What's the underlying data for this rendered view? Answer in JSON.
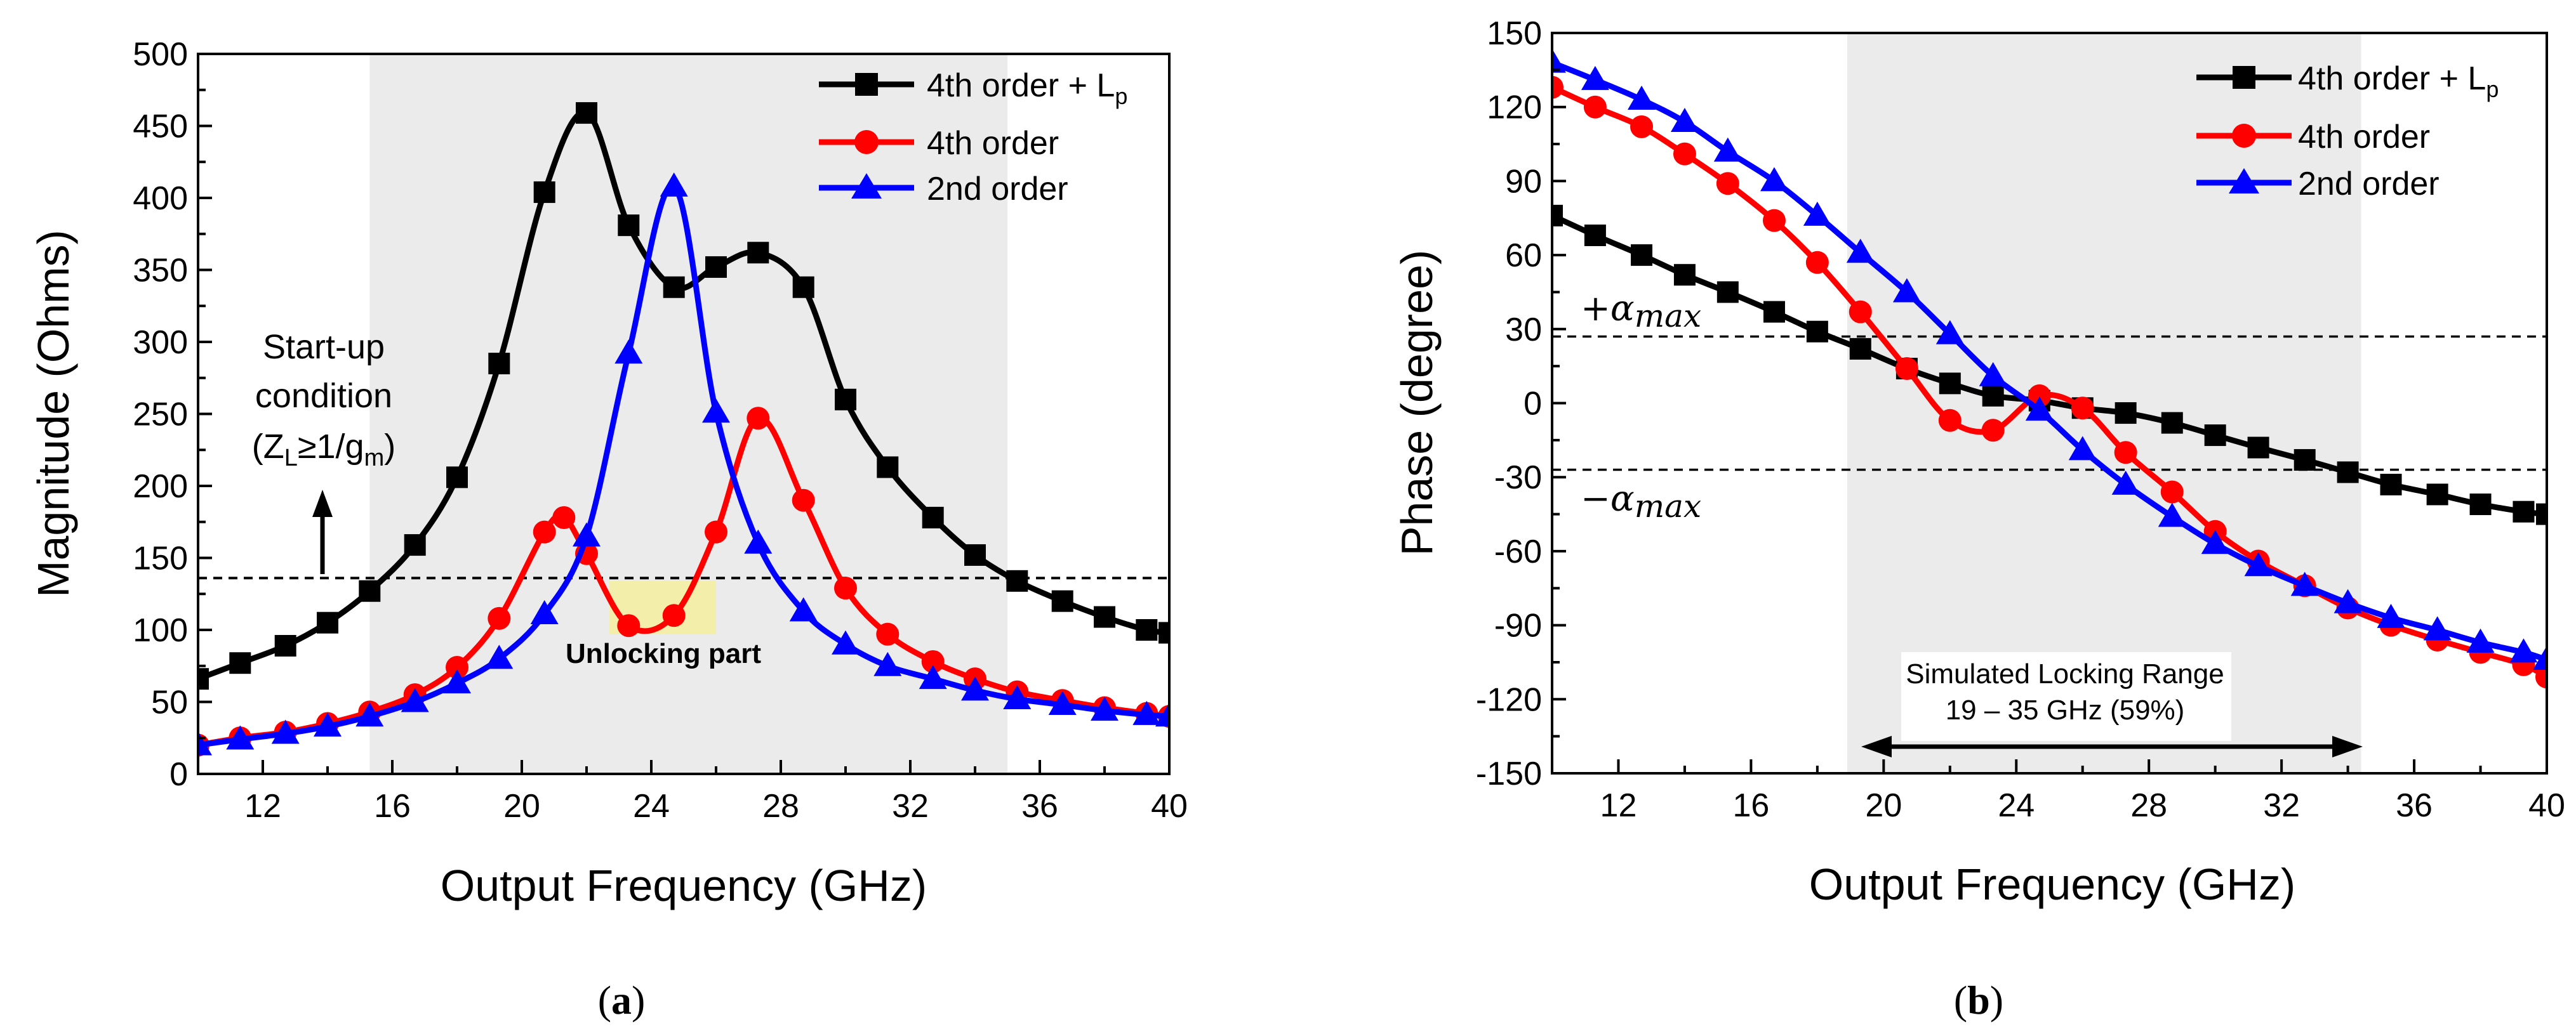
{
  "colors": {
    "black_series": "#000000",
    "red_series": "#ff0000",
    "blue_series": "#0000ff",
    "shade": "#ebebeb",
    "unlock_highlight": "#f5f0a0"
  },
  "chart_data": [
    {
      "type": "line",
      "panel_label": "a",
      "xlabel": "Output Frequency (GHz)",
      "ylabel": "Magnitude (Ohms)",
      "xlim": [
        10,
        40
      ],
      "ylim": [
        0,
        500
      ],
      "xticks": [
        "12",
        "16",
        "20",
        "24",
        "28",
        "32",
        "36",
        "40"
      ],
      "yticks": [
        "0",
        "50",
        "100",
        "150",
        "200",
        "250",
        "300",
        "350",
        "400",
        "450",
        "500"
      ],
      "shaded_region": [
        15.3,
        35
      ],
      "threshold_line": 136,
      "annotation": {
        "line1": "Start-up",
        "line2": "condition",
        "line3_prefix": "(Z",
        "line3_sub1": "L",
        "line3_mid": "≥1/g",
        "line3_sub2": "m",
        "line3_suffix": ")"
      },
      "unlocking_label": "Unlocking part",
      "series": [
        {
          "name": "4th order + Lp",
          "legend_main": "4th order + L",
          "legend_sub": "p",
          "color": "#000000",
          "marker": "square",
          "x": [
            10,
            11.3,
            12.7,
            14.0,
            15.3,
            16.7,
            18.0,
            19.3,
            20.7,
            22.0,
            23.3,
            24.7,
            26.0,
            27.3,
            28.7,
            30.0,
            31.3,
            32.7,
            34.0,
            35.3,
            36.7,
            38.0,
            39.3,
            40
          ],
          "y": [
            66,
            77,
            89,
            105,
            127,
            159,
            206,
            285,
            404,
            459,
            381,
            338,
            352,
            362,
            338,
            260,
            213,
            178,
            152,
            134,
            120,
            109,
            100,
            98
          ]
        },
        {
          "name": "4th order",
          "legend_main": "4th order",
          "legend_sub": "",
          "color": "#ff0000",
          "marker": "circle",
          "x": [
            10,
            11.3,
            12.7,
            14.0,
            15.3,
            16.7,
            18.0,
            19.3,
            20.7,
            21.3,
            22.0,
            23.3,
            24.7,
            26.0,
            27.3,
            28.7,
            30.0,
            31.3,
            32.7,
            34.0,
            35.3,
            36.7,
            38.0,
            39.3,
            40
          ],
          "y": [
            20,
            25,
            29,
            35,
            43,
            55,
            74,
            108,
            168,
            178,
            153,
            103,
            110,
            168,
            247,
            190,
            129,
            97,
            78,
            66,
            57,
            51,
            46,
            42,
            40
          ]
        },
        {
          "name": "2nd order",
          "legend_main": "2nd order",
          "legend_sub": "",
          "color": "#0000ff",
          "marker": "triangle",
          "x": [
            10,
            11.3,
            12.7,
            14.0,
            15.3,
            16.7,
            18.0,
            19.3,
            20.7,
            22.0,
            23.3,
            24.7,
            26.0,
            27.3,
            28.7,
            30.0,
            31.3,
            32.7,
            34.0,
            35.3,
            36.7,
            38.0,
            39.3,
            40
          ],
          "y": [
            20,
            24,
            28,
            33,
            40,
            50,
            63,
            80,
            111,
            165,
            292,
            408,
            251,
            160,
            113,
            90,
            75,
            66,
            58,
            52,
            48,
            44,
            41,
            40
          ]
        }
      ]
    },
    {
      "type": "line",
      "panel_label": "b",
      "xlabel": "Output Frequency (GHz)",
      "ylabel": "Phase (degree)",
      "xlim": [
        10,
        40
      ],
      "ylim": [
        -150,
        150
      ],
      "xticks": [
        "12",
        "16",
        "20",
        "24",
        "28",
        "32",
        "36",
        "40"
      ],
      "yticks": [
        "-150",
        "-120",
        "-90",
        "-60",
        "-30",
        "0",
        "30",
        "60",
        "90",
        "120",
        "150"
      ],
      "shaded_region": [
        18.9,
        34.4
      ],
      "alpha_lines": [
        27,
        -27
      ],
      "alpha_plus": {
        "sign": "+",
        "symbol": "α",
        "sub": "max"
      },
      "alpha_minus": {
        "sign": "−",
        "symbol": "α",
        "sub": "max"
      },
      "locking_range": {
        "line1": "Simulated Locking Range",
        "line2": "19 – 35 GHz (59%)",
        "range": [
          19,
          35
        ]
      },
      "series": [
        {
          "name": "4th order + Lp",
          "legend_main": "4th order + L",
          "legend_sub": "p",
          "color": "#000000",
          "marker": "square",
          "x": [
            10,
            11.3,
            12.7,
            14.0,
            15.3,
            16.7,
            18.0,
            19.3,
            20.7,
            22.0,
            23.3,
            24.7,
            26.0,
            27.3,
            28.7,
            30.0,
            31.3,
            32.7,
            34.0,
            35.3,
            36.7,
            38.0,
            39.3,
            40
          ],
          "y": [
            76,
            68,
            60,
            52,
            45,
            37,
            29,
            22,
            14,
            8,
            3,
            1,
            -2,
            -4,
            -8,
            -13,
            -18,
            -23,
            -28,
            -33,
            -37,
            -41,
            -44,
            -45
          ]
        },
        {
          "name": "4th order",
          "legend_main": "4th order",
          "legend_sub": "",
          "color": "#ff0000",
          "marker": "circle",
          "x": [
            10,
            11.3,
            12.7,
            14.0,
            15.3,
            16.7,
            18.0,
            19.3,
            20.7,
            22.0,
            23.3,
            24.7,
            26.0,
            27.3,
            28.7,
            30.0,
            31.3,
            32.7,
            34.0,
            35.3,
            36.7,
            38.0,
            39.3,
            40
          ],
          "y": [
            128,
            120,
            112,
            101,
            89,
            74,
            57,
            37,
            14,
            -7,
            -11,
            3,
            -2,
            -20,
            -36,
            -52,
            -64,
            -74,
            -83,
            -90,
            -96,
            -101,
            -106,
            -111
          ]
        },
        {
          "name": "2nd order",
          "legend_main": "2nd order",
          "legend_sub": "",
          "color": "#0000ff",
          "marker": "triangle",
          "x": [
            10,
            11.3,
            12.7,
            14.0,
            15.3,
            16.7,
            18.0,
            19.3,
            20.7,
            22.0,
            23.3,
            24.7,
            26.0,
            27.3,
            28.7,
            30.0,
            31.3,
            32.7,
            34.0,
            35.3,
            36.7,
            38.0,
            39.3,
            40
          ],
          "y": [
            138,
            131,
            123,
            114,
            102,
            90,
            76,
            61,
            45,
            28,
            11,
            -3,
            -19,
            -33,
            -46,
            -57,
            -66,
            -74,
            -81,
            -87,
            -92,
            -97,
            -101,
            -104
          ]
        }
      ]
    }
  ]
}
